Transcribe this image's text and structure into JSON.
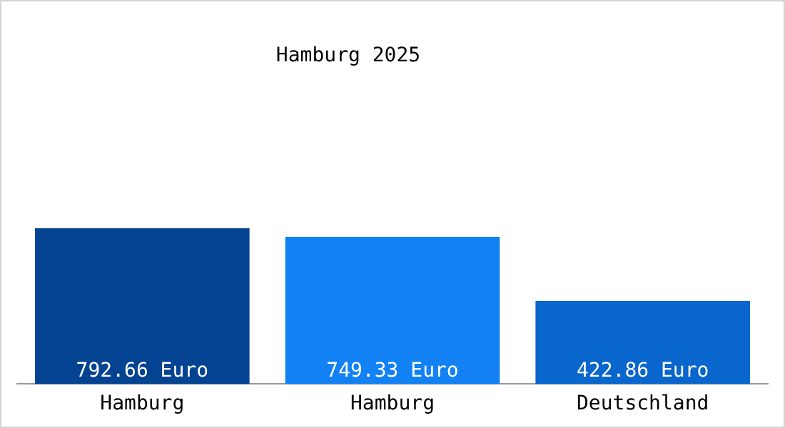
{
  "chart_data": {
    "type": "bar",
    "title": "Hamburg 2025",
    "categories": [
      "Hamburg",
      "Hamburg",
      "Deutschland"
    ],
    "values": [
      792.66,
      749.33,
      422.86
    ],
    "colors": [
      "#034391",
      "#1281f4",
      "#0966cc"
    ],
    "value_labels": [
      "792.66 Euro",
      "749.33 Euro",
      "422.86 Euro"
    ],
    "grid": false,
    "legend": false
  }
}
